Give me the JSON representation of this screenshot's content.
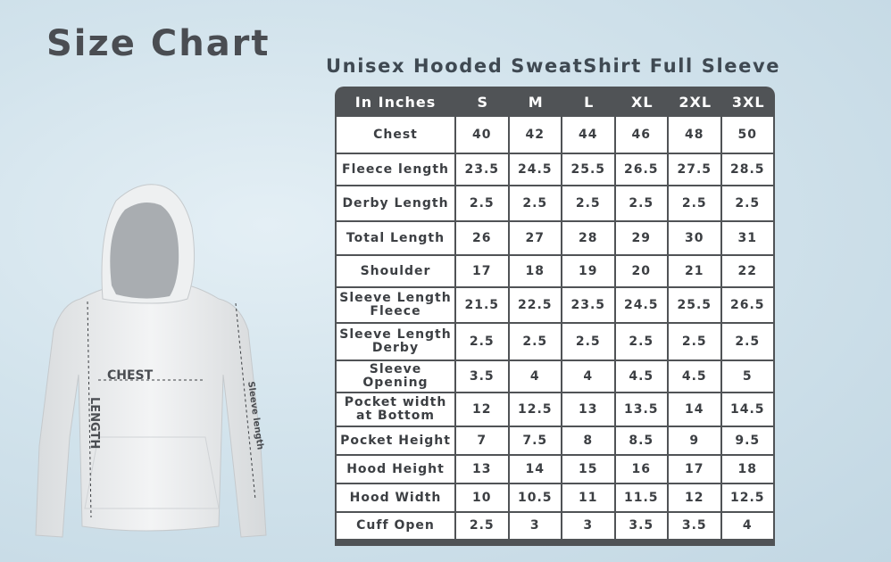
{
  "title": "Size Chart",
  "subtitle": "Unisex Hooded SweatShirt Full Sleeve",
  "illustration": {
    "chest_label": "CHEST",
    "length_label": "LENGTH",
    "sleeve_label": "Sleeve length"
  },
  "table": {
    "header": [
      "In Inches",
      "S",
      "M",
      "L",
      "XL",
      "2XL",
      "3XL"
    ],
    "rows": [
      {
        "label": "Chest",
        "values": [
          "40",
          "42",
          "44",
          "46",
          "48",
          "50"
        ]
      },
      {
        "label": "Fleece length",
        "values": [
          "23.5",
          "24.5",
          "25.5",
          "26.5",
          "27.5",
          "28.5"
        ]
      },
      {
        "label": "Derby Length",
        "values": [
          "2.5",
          "2.5",
          "2.5",
          "2.5",
          "2.5",
          "2.5"
        ]
      },
      {
        "label": "Total Length",
        "values": [
          "26",
          "27",
          "28",
          "29",
          "30",
          "31"
        ]
      },
      {
        "label": "Shoulder",
        "values": [
          "17",
          "18",
          "19",
          "20",
          "21",
          "22"
        ]
      },
      {
        "label": "Sleeve Length Fleece",
        "values": [
          "21.5",
          "22.5",
          "23.5",
          "24.5",
          "25.5",
          "26.5"
        ]
      },
      {
        "label": "Sleeve Length Derby",
        "values": [
          "2.5",
          "2.5",
          "2.5",
          "2.5",
          "2.5",
          "2.5"
        ]
      },
      {
        "label": "Sleeve Opening",
        "values": [
          "3.5",
          "4",
          "4",
          "4.5",
          "4.5",
          "5"
        ]
      },
      {
        "label": "Pocket width at Bottom",
        "values": [
          "12",
          "12.5",
          "13",
          "13.5",
          "14",
          "14.5"
        ]
      },
      {
        "label": "Pocket Height",
        "values": [
          "7",
          "7.5",
          "8",
          "8.5",
          "9",
          "9.5"
        ]
      },
      {
        "label": "Hood Height",
        "values": [
          "13",
          "14",
          "15",
          "16",
          "17",
          "18"
        ]
      },
      {
        "label": "Hood Width",
        "values": [
          "10",
          "10.5",
          "11",
          "11.5",
          "12",
          "12.5"
        ]
      },
      {
        "label": "Cuff Open",
        "values": [
          "2.5",
          "3",
          "3",
          "3.5",
          "3.5",
          "4"
        ]
      }
    ]
  },
  "colors": {
    "table_header": "#505356",
    "background": "#d2e3ec",
    "text": "#3c3f43"
  }
}
